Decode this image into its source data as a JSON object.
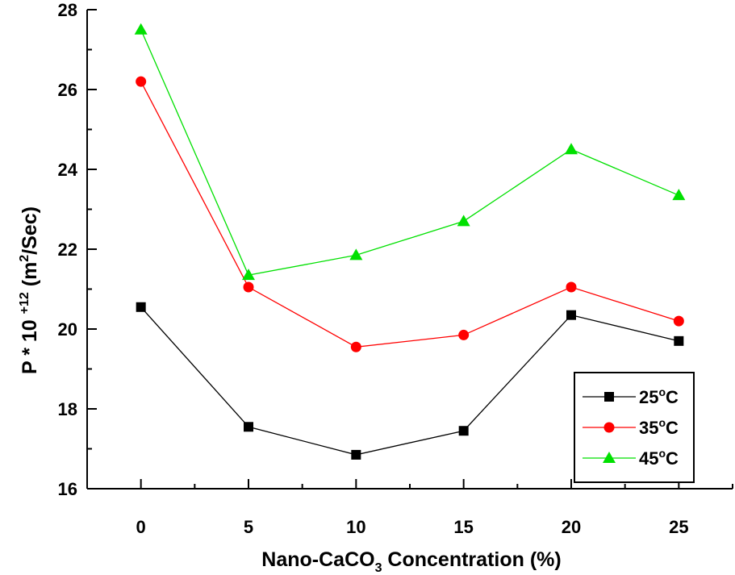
{
  "chart_data": {
    "type": "line",
    "x": [
      0,
      5,
      10,
      15,
      20,
      25
    ],
    "xlim": [
      -2.5,
      27.5
    ],
    "ylim": [
      16,
      28
    ],
    "xticks": [
      "0",
      "5",
      "10",
      "15",
      "20",
      "25"
    ],
    "yticks": [
      "16",
      "18",
      "20",
      "22",
      "24",
      "26",
      "28"
    ],
    "xlabel": {
      "main": "Nano-CaCO",
      "subscript": "3",
      "rest": " Concentration (%)"
    },
    "ylabel": {
      "main": "P * 10 ",
      "superscript1": "+12",
      "mid": " (m",
      "superscript2": "2",
      "rest": "/Sec)"
    },
    "grid": false,
    "legend_position": "bottom-right",
    "series": [
      {
        "name": "25",
        "unit": "C",
        "degree": "o",
        "color": "#000000",
        "marker": "square",
        "values": [
          20.55,
          17.55,
          16.85,
          17.45,
          20.35,
          19.7
        ]
      },
      {
        "name": "35",
        "unit": "C",
        "degree": "o",
        "color": "#ff0000",
        "marker": "circle",
        "values": [
          26.2,
          21.05,
          19.55,
          19.85,
          21.05,
          20.2
        ]
      },
      {
        "name": "45",
        "unit": "C",
        "degree": "o",
        "color": "#00e000",
        "marker": "triangle",
        "values": [
          27.5,
          21.35,
          21.85,
          22.7,
          24.5,
          23.35
        ]
      }
    ]
  }
}
